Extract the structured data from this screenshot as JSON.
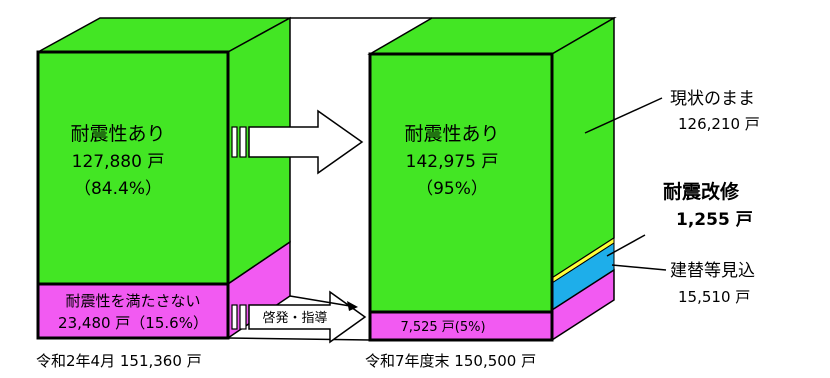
{
  "chart_data": {
    "type": "bar",
    "categories": [
      "令和2年4月 151,360 戸",
      "令和7年度末 150,500 戸"
    ],
    "series": [
      {
        "name": "耐震性あり",
        "values": [
          127880,
          142975
        ]
      },
      {
        "name": "耐震性を満たさない",
        "values": [
          23480,
          7525
        ]
      }
    ],
    "breakdown_2025": [
      {
        "name": "現状のまま",
        "value": 126210
      },
      {
        "name": "耐震改修",
        "value": 1255
      },
      {
        "name": "建替等見込",
        "value": 15510
      }
    ],
    "colors": {
      "earthquake_resistant": "#43e624",
      "not_resistant": "#f25af2",
      "retrofit": "#ffff3a",
      "rebuild": "#1eaeea",
      "outline": "#000000"
    }
  },
  "left_bar": {
    "top_label": "耐震性あり",
    "top_value": "127,880 戸",
    "top_pct": "（84.4%）",
    "bottom_label": "耐震性を満たさない",
    "bottom_value": "23,480 戸（15.6%）",
    "caption": "令和2年4月 151,360 戸"
  },
  "right_bar": {
    "top_label": "耐震性あり",
    "top_value": "142,975 戸",
    "top_pct": "（95%）",
    "bottom_value": "7,525 戸(5%)",
    "caption": "令和7年度末 150,500 戸"
  },
  "arrow_label": "啓発・指導",
  "callouts": {
    "current_label": "現状のまま",
    "current_value": "126,210 戸",
    "retrofit_label": "耐震改修",
    "retrofit_value": "1,255 戸",
    "rebuild_label": "建替等見込",
    "rebuild_value": "15,510 戸"
  }
}
